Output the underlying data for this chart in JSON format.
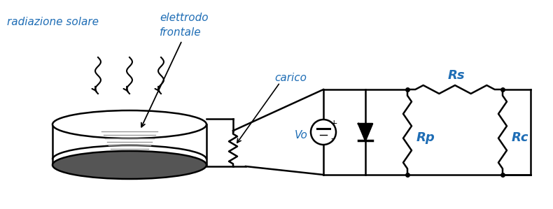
{
  "bg_color": "#ffffff",
  "text_color_blue": "#1E6DB5",
  "text_color_black": "#000000",
  "label_radiazione": "radiazione solare",
  "label_elettrodo": "elettrodo\nfrontale",
  "label_carico": "carico",
  "label_vo": "Vo",
  "label_rs": "Rs",
  "label_rp": "Rp",
  "label_rc": "Rc"
}
